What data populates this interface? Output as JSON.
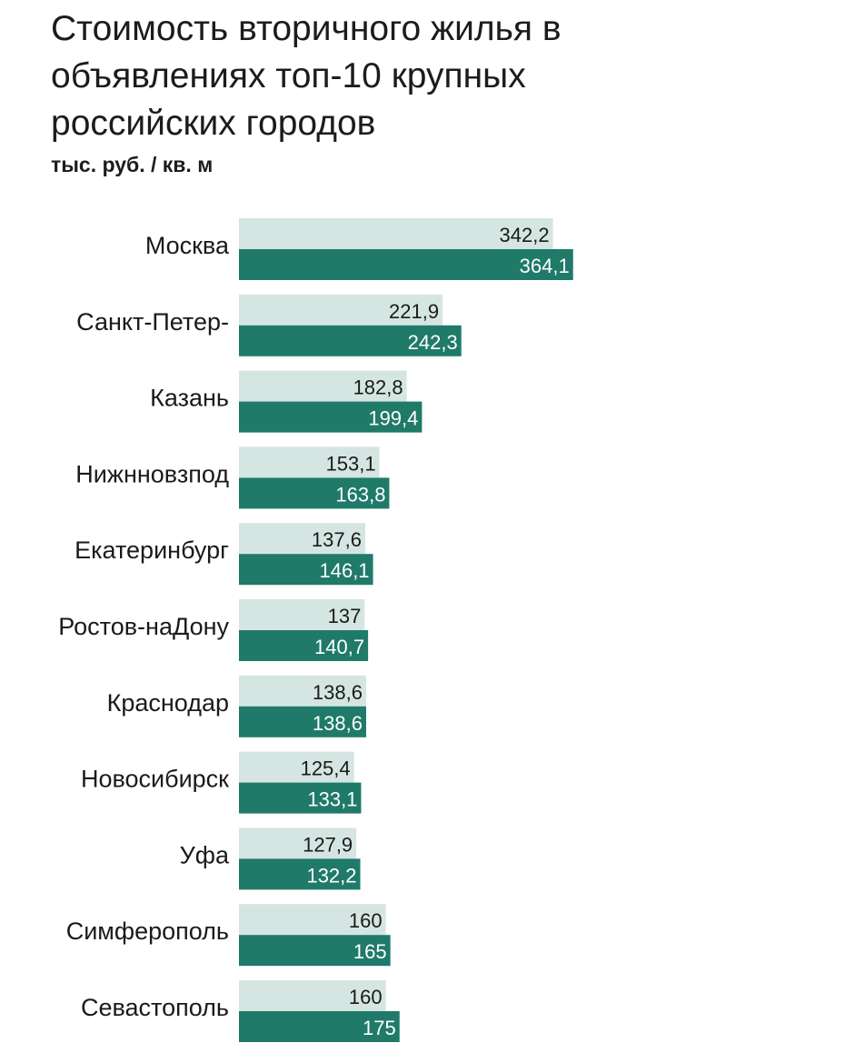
{
  "chart_data": {
    "type": "bar",
    "orientation": "horizontal",
    "title": "Стоимость вторичного жилья в объявлениях топ-10 крупных российских городов",
    "subtitle": "тыс. руб. / кв. м",
    "categories": [
      "Москва",
      "Санкт-Петер-",
      "Казань",
      "Нижнновзпод",
      "Екатеринбург",
      "Ростов-наДону",
      "Краснодар",
      "Новосибирск",
      "Уфа",
      "Симферополь",
      "Севастополь"
    ],
    "series": [
      {
        "values": [
          342.2,
          221.9,
          182.8,
          153.1,
          137.6,
          137,
          138.6,
          125.4,
          127.9,
          160,
          160
        ],
        "labels": [
          "342,2",
          "221,9",
          "182,8",
          "153,1",
          "137,6",
          "137",
          "138,6",
          "125,4",
          "127,9",
          "160",
          "160"
        ],
        "color": "#d5e6e2"
      },
      {
        "values": [
          364.1,
          242.3,
          199.4,
          163.8,
          146.1,
          140.7,
          138.6,
          133.1,
          132.2,
          165,
          175
        ],
        "labels": [
          "364,1",
          "242,3",
          "199,4",
          "163,8",
          "146,1",
          "140,7",
          "138,6",
          "133,1",
          "132,2",
          "165",
          "175"
        ],
        "color": "#1f7a6a"
      }
    ],
    "grid": false,
    "legend": "none"
  }
}
